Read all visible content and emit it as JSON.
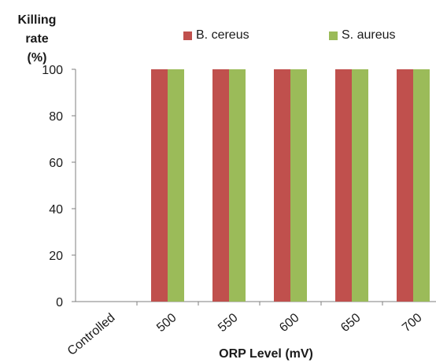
{
  "chart_data": {
    "type": "bar",
    "ylabel": "Killing rate (%)",
    "xlabel": "ORP Level (mV)",
    "categories": [
      "Controlled",
      "500",
      "550",
      "600",
      "650",
      "700"
    ],
    "series": [
      {
        "name": "B. cereus",
        "color": "#c0504d",
        "values": [
          0,
          100,
          100,
          100,
          100,
          100
        ]
      },
      {
        "name": "S. aureus",
        "color": "#9bbb59",
        "values": [
          0,
          100,
          100,
          100,
          100,
          100
        ]
      }
    ],
    "ylim": [
      0,
      100
    ],
    "yticks": [
      0,
      20,
      40,
      60,
      80,
      100
    ],
    "grid": false,
    "legend_position": "top"
  }
}
